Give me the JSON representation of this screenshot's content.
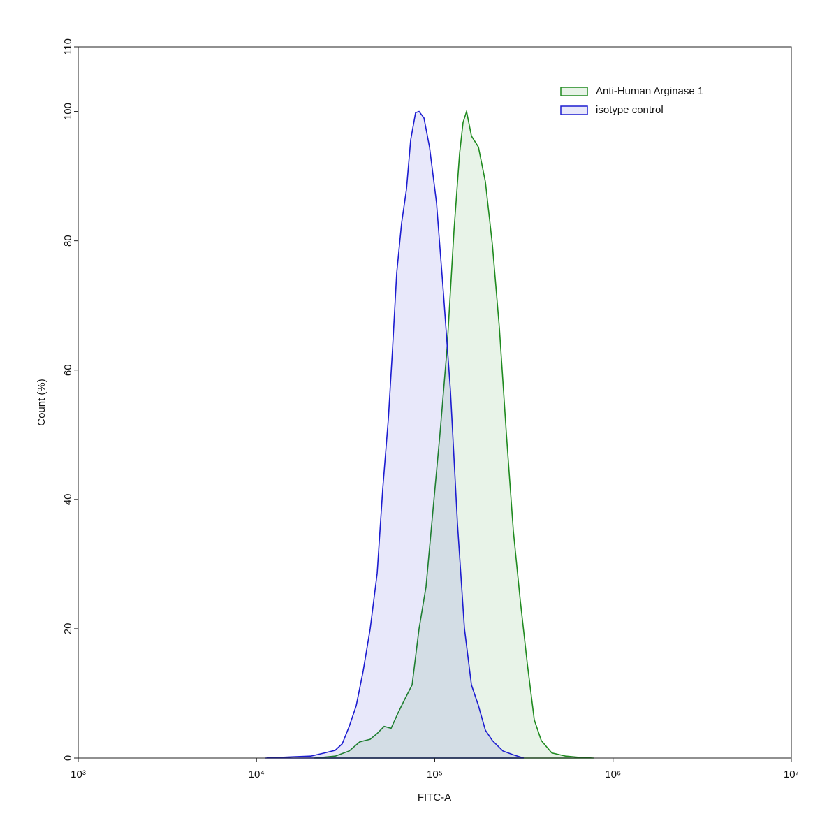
{
  "chart_data": {
    "type": "area",
    "xlabel": "FITC-A",
    "ylabel": "Count  (%)",
    "xscale": "log",
    "xlim": [
      1000,
      10000000
    ],
    "ylim": [
      0,
      110
    ],
    "xticks": [
      {
        "value": 1000,
        "label": "10³"
      },
      {
        "value": 10000,
        "label": "10⁴"
      },
      {
        "value": 100000,
        "label": "10⁵"
      },
      {
        "value": 1000000,
        "label": "10⁶"
      },
      {
        "value": 10000000,
        "label": "10⁷"
      }
    ],
    "yticks": [
      0,
      20,
      40,
      60,
      80,
      100,
      110
    ],
    "legend": "upper right",
    "series": [
      {
        "name": "Anti-Human Arginase 1",
        "color": "#1f8a1f",
        "x": [
          21100,
          27650,
          33130,
          37930,
          43430,
          47530,
          52000,
          56900,
          62280,
          68170,
          74610,
          81640,
          89340,
          97770,
          107000,
          117100,
          128200,
          137800,
          144100,
          150800,
          160630,
          175790,
          192330,
          210500,
          230400,
          252100,
          275940,
          301900,
          330400,
          361600,
          395800,
          453200,
          542600,
          650100,
          778400
        ],
        "values": [
          0,
          0.3,
          1.1,
          2.5,
          2.9,
          3.8,
          4.9,
          4.6,
          7,
          9.2,
          11.3,
          20,
          26.5,
          38.4,
          50.2,
          63.2,
          81.6,
          93.5,
          98.3,
          100,
          96.2,
          94.5,
          89.1,
          79.4,
          66.5,
          50.2,
          35.1,
          24.3,
          14.6,
          5.9,
          2.7,
          0.8,
          0.3,
          0.1,
          0
        ]
      },
      {
        "name": "isotype control",
        "color": "#1c1cd0",
        "x": [
          11220,
          16090,
          20160,
          24150,
          27650,
          30260,
          33130,
          36260,
          39680,
          43430,
          47530,
          51060,
          54890,
          57940,
          61160,
          65140,
          69400,
          73270,
          78050,
          81640,
          86970,
          93460,
          102260,
          111940,
          122520,
          134110,
          146750,
          160630,
          175790,
          192330,
          210500,
          240990,
          275940,
          315780
        ],
        "values": [
          0,
          0.2,
          0.3,
          0.8,
          1.2,
          2.2,
          4.9,
          8.1,
          13.5,
          20,
          28.6,
          41.6,
          52.4,
          63.2,
          75,
          82.7,
          88,
          95.6,
          99.8,
          100,
          99,
          94.5,
          85.9,
          71.8,
          56.7,
          36.2,
          20,
          11.3,
          8.1,
          4.3,
          2.7,
          1.1,
          0.5,
          0
        ]
      }
    ]
  }
}
